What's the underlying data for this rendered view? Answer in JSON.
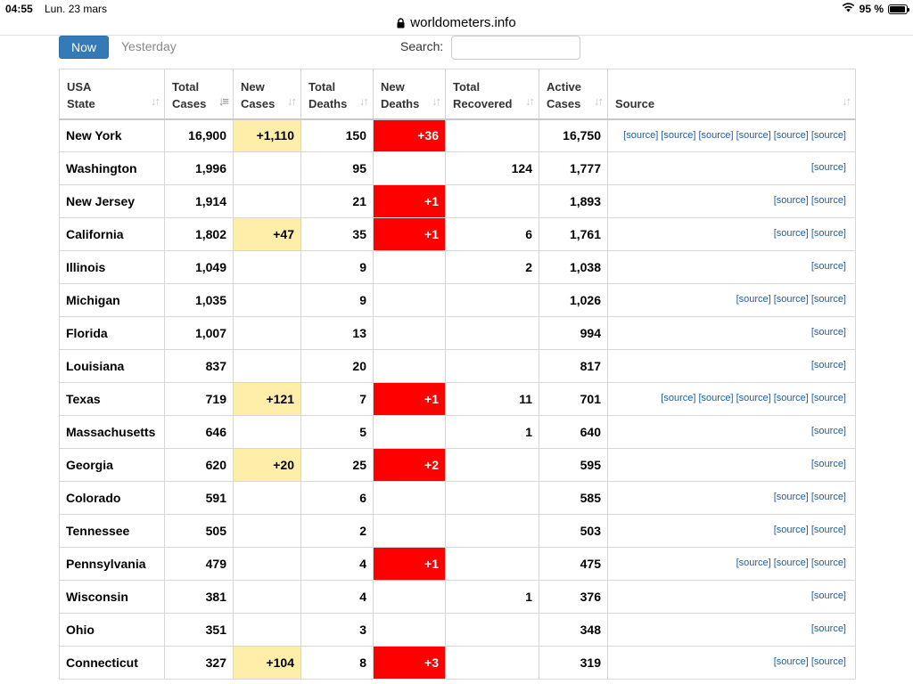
{
  "statusbar": {
    "time": "04:55",
    "date": "Lun. 23 mars",
    "battery": "95 %",
    "battery_level": 0.95
  },
  "browser": {
    "url": "worldometers.info"
  },
  "toolbar": {
    "now_label": "Now",
    "yesterday_label": "Yesterday",
    "search_label": "Search:",
    "search_value": ""
  },
  "colors": {
    "button_blue": "#337ab7",
    "new_cases_highlight": "#ffeeaa",
    "new_deaths_highlight": "#ff0000",
    "source_link": "#1a5fa8"
  },
  "table": {
    "headers": [
      {
        "line1": "USA",
        "line2": "State"
      },
      {
        "line1": "Total",
        "line2": "Cases"
      },
      {
        "line1": "New",
        "line2": "Cases"
      },
      {
        "line1": "Total",
        "line2": "Deaths"
      },
      {
        "line1": "New",
        "line2": "Deaths"
      },
      {
        "line1": "Total",
        "line2": "Recovered"
      },
      {
        "line1": "Active",
        "line2": "Cases"
      },
      {
        "line1": "",
        "line2": "Source"
      }
    ],
    "source_link_label": "[source]",
    "rows": [
      {
        "state": "New York",
        "total_cases": "16,900",
        "new_cases": "+1,110",
        "total_deaths": "150",
        "new_deaths": "+36",
        "total_recovered": "",
        "active_cases": "16,750",
        "sources": 6
      },
      {
        "state": "Washington",
        "total_cases": "1,996",
        "new_cases": "",
        "total_deaths": "95",
        "new_deaths": "",
        "total_recovered": "124",
        "active_cases": "1,777",
        "sources": 1
      },
      {
        "state": "New Jersey",
        "total_cases": "1,914",
        "new_cases": "",
        "total_deaths": "21",
        "new_deaths": "+1",
        "total_recovered": "",
        "active_cases": "1,893",
        "sources": 2
      },
      {
        "state": "California",
        "total_cases": "1,802",
        "new_cases": "+47",
        "total_deaths": "35",
        "new_deaths": "+1",
        "total_recovered": "6",
        "active_cases": "1,761",
        "sources": 2
      },
      {
        "state": "Illinois",
        "total_cases": "1,049",
        "new_cases": "",
        "total_deaths": "9",
        "new_deaths": "",
        "total_recovered": "2",
        "active_cases": "1,038",
        "sources": 1
      },
      {
        "state": "Michigan",
        "total_cases": "1,035",
        "new_cases": "",
        "total_deaths": "9",
        "new_deaths": "",
        "total_recovered": "",
        "active_cases": "1,026",
        "sources": 3
      },
      {
        "state": "Florida",
        "total_cases": "1,007",
        "new_cases": "",
        "total_deaths": "13",
        "new_deaths": "",
        "total_recovered": "",
        "active_cases": "994",
        "sources": 1
      },
      {
        "state": "Louisiana",
        "total_cases": "837",
        "new_cases": "",
        "total_deaths": "20",
        "new_deaths": "",
        "total_recovered": "",
        "active_cases": "817",
        "sources": 1
      },
      {
        "state": "Texas",
        "total_cases": "719",
        "new_cases": "+121",
        "total_deaths": "7",
        "new_deaths": "+1",
        "total_recovered": "11",
        "active_cases": "701",
        "sources": 5
      },
      {
        "state": "Massachusetts",
        "total_cases": "646",
        "new_cases": "",
        "total_deaths": "5",
        "new_deaths": "",
        "total_recovered": "1",
        "active_cases": "640",
        "sources": 1
      },
      {
        "state": "Georgia",
        "total_cases": "620",
        "new_cases": "+20",
        "total_deaths": "25",
        "new_deaths": "+2",
        "total_recovered": "",
        "active_cases": "595",
        "sources": 1
      },
      {
        "state": "Colorado",
        "total_cases": "591",
        "new_cases": "",
        "total_deaths": "6",
        "new_deaths": "",
        "total_recovered": "",
        "active_cases": "585",
        "sources": 2
      },
      {
        "state": "Tennessee",
        "total_cases": "505",
        "new_cases": "",
        "total_deaths": "2",
        "new_deaths": "",
        "total_recovered": "",
        "active_cases": "503",
        "sources": 2
      },
      {
        "state": "Pennsylvania",
        "total_cases": "479",
        "new_cases": "",
        "total_deaths": "4",
        "new_deaths": "+1",
        "total_recovered": "",
        "active_cases": "475",
        "sources": 3
      },
      {
        "state": "Wisconsin",
        "total_cases": "381",
        "new_cases": "",
        "total_deaths": "4",
        "new_deaths": "",
        "total_recovered": "1",
        "active_cases": "376",
        "sources": 1
      },
      {
        "state": "Ohio",
        "total_cases": "351",
        "new_cases": "",
        "total_deaths": "3",
        "new_deaths": "",
        "total_recovered": "",
        "active_cases": "348",
        "sources": 1
      },
      {
        "state": "Connecticut",
        "total_cases": "327",
        "new_cases": "+104",
        "total_deaths": "8",
        "new_deaths": "+3",
        "total_recovered": "",
        "active_cases": "319",
        "sources": 2
      }
    ]
  }
}
